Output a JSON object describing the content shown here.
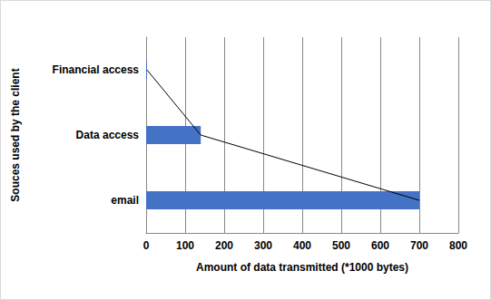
{
  "chart_data": {
    "type": "bar",
    "orientation": "horizontal",
    "x_label": "Amount of data transmitted (*1000 bytes)",
    "y_label": "Souces used by the client",
    "categories": [
      "email",
      "Data access",
      "Financial access"
    ],
    "series": [
      {
        "type": "bar",
        "color": "#4472c4",
        "values": [
          700,
          140,
          2
        ]
      },
      {
        "type": "line",
        "color": "#000000",
        "values": [
          700,
          140,
          2
        ]
      }
    ],
    "xlim": [
      0,
      800
    ],
    "xticks": [
      0,
      100,
      200,
      300,
      400,
      500,
      600,
      700,
      800
    ],
    "grid": true
  }
}
